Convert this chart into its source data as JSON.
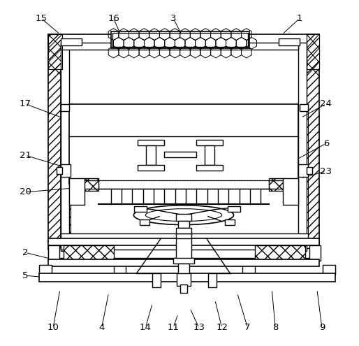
{
  "bg_color": "#ffffff",
  "figsize": [
    5.14,
    4.95
  ],
  "dpi": 100,
  "annotations": [
    [
      "1",
      430,
      25,
      405,
      48
    ],
    [
      "3",
      248,
      25,
      260,
      48
    ],
    [
      "15",
      58,
      25,
      85,
      48
    ],
    [
      "16",
      162,
      25,
      172,
      48
    ],
    [
      "17",
      35,
      148,
      88,
      168
    ],
    [
      "21",
      35,
      222,
      88,
      238
    ],
    [
      "20",
      35,
      275,
      118,
      268
    ],
    [
      "2",
      35,
      362,
      88,
      375
    ],
    [
      "5",
      35,
      395,
      68,
      398
    ],
    [
      "10",
      75,
      470,
      85,
      415
    ],
    [
      "4",
      145,
      470,
      155,
      420
    ],
    [
      "14",
      208,
      470,
      218,
      435
    ],
    [
      "11",
      248,
      470,
      255,
      450
    ],
    [
      "13",
      285,
      470,
      272,
      442
    ],
    [
      "12",
      318,
      470,
      308,
      430
    ],
    [
      "7",
      355,
      470,
      340,
      420
    ],
    [
      "8",
      395,
      470,
      390,
      415
    ],
    [
      "9",
      462,
      470,
      455,
      415
    ],
    [
      "24",
      468,
      148,
      432,
      168
    ],
    [
      "6",
      468,
      205,
      422,
      230
    ],
    [
      "23",
      468,
      245,
      432,
      255
    ]
  ]
}
